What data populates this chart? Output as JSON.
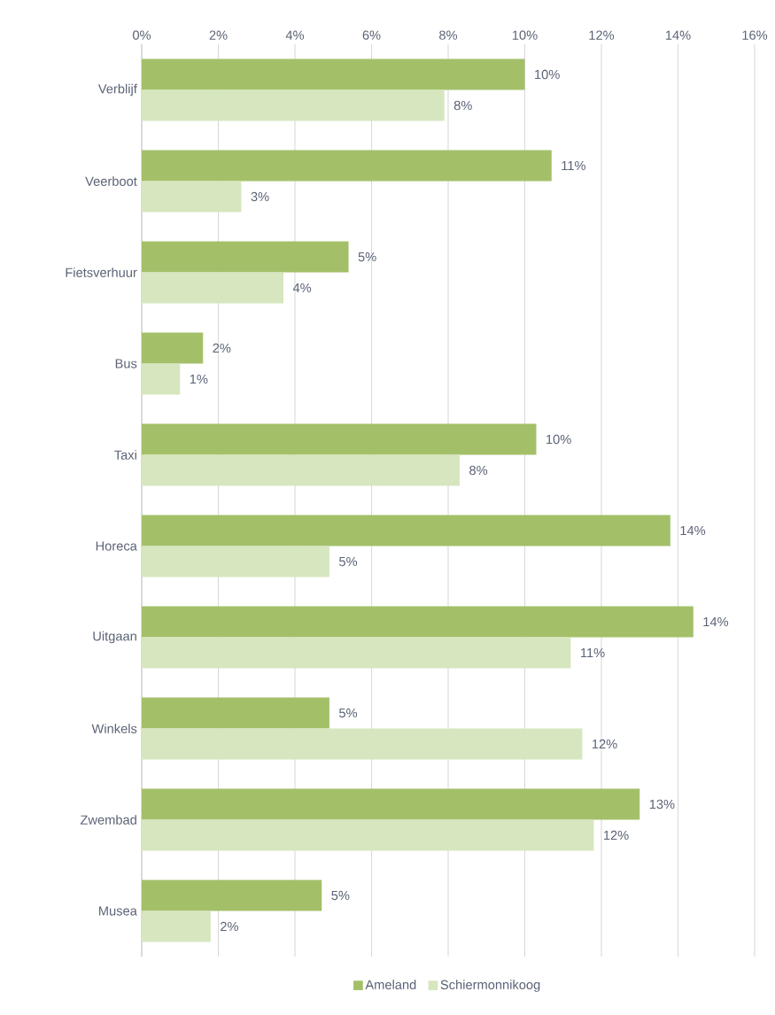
{
  "chart_data": {
    "type": "bar",
    "orientation": "horizontal",
    "categories": [
      "Verblijf",
      "Veerboot",
      "Fietsverhuur",
      "Bus",
      "Taxi",
      "Horeca",
      "Uitgaan",
      "Winkels",
      "Zwembad",
      "Musea"
    ],
    "series": [
      {
        "name": "Ameland",
        "color": "#a3c069",
        "values": [
          10.0,
          10.7,
          5.4,
          1.6,
          10.3,
          13.8,
          14.4,
          4.9,
          13.0,
          4.7
        ],
        "value_labels": [
          "10%",
          "11%",
          "5%",
          "2%",
          "10%",
          "14%",
          "14%",
          "5%",
          "13%",
          "5%"
        ]
      },
      {
        "name": "Schiermonnikoog",
        "color": "#d6e6bf",
        "values": [
          7.9,
          2.6,
          3.7,
          1.0,
          8.3,
          4.9,
          11.2,
          11.5,
          11.8,
          1.8
        ],
        "value_labels": [
          "8%",
          "3%",
          "4%",
          "1%",
          "8%",
          "5%",
          "11%",
          "12%",
          "12%",
          "2%"
        ]
      }
    ],
    "xlim": [
      0,
      16
    ],
    "xticks": [
      {
        "value": 0,
        "label": "0%"
      },
      {
        "value": 2,
        "label": "2%"
      },
      {
        "value": 4,
        "label": "4%"
      },
      {
        "value": 6,
        "label": "6%"
      },
      {
        "value": 8,
        "label": "8%"
      },
      {
        "value": 10,
        "label": "10%"
      },
      {
        "value": 12,
        "label": "12%"
      },
      {
        "value": 14,
        "label": "14%"
      },
      {
        "value": 16,
        "label": "16%"
      }
    ],
    "grid": "x",
    "legend": "bottom"
  }
}
